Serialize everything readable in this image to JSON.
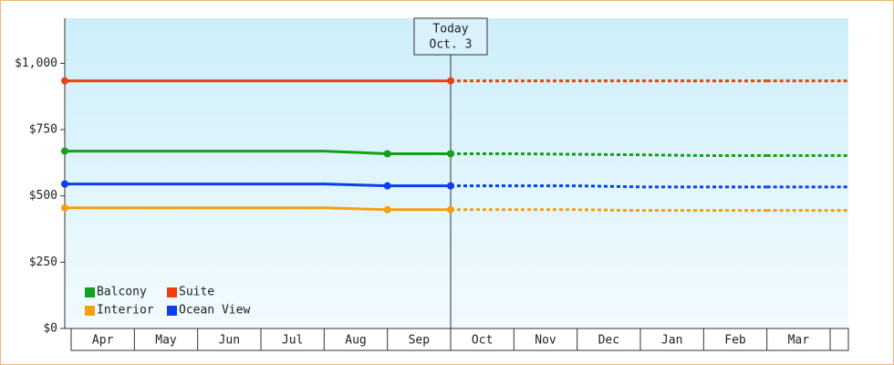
{
  "chart_data": {
    "type": "line",
    "categories": [
      "Apr",
      "May",
      "Jun",
      "Jul",
      "Aug",
      "Sep",
      "Oct",
      "Nov",
      "Dec",
      "Jan",
      "Feb",
      "Mar"
    ],
    "series": [
      {
        "name": "Balcony",
        "color": "#13a01a",
        "values": [
          669,
          669,
          669,
          669,
          669,
          659,
          659,
          659,
          657,
          655,
          652,
          652
        ]
      },
      {
        "name": "Suite",
        "color": "#f0400f",
        "values": [
          934,
          934,
          934,
          934,
          934,
          934,
          934,
          934,
          934,
          934,
          934,
          934
        ]
      },
      {
        "name": "Interior",
        "color": "#f5a00a",
        "values": [
          455,
          455,
          455,
          455,
          455,
          448,
          448,
          448,
          448,
          445,
          445,
          445
        ]
      },
      {
        "name": "Ocean View",
        "color": "#0a3ff0",
        "values": [
          545,
          545,
          545,
          545,
          545,
          538,
          538,
          538,
          538,
          534,
          534,
          534
        ]
      }
    ],
    "today_label": [
      "Today",
      "Oct. 3"
    ],
    "today_index": 6,
    "ylim": [
      0,
      1170
    ],
    "yticks": [
      0,
      {
        "value": 250,
        "label": "$250"
      },
      {
        "value": 500,
        "label": "$500"
      },
      {
        "value": 750,
        "label": "$750"
      },
      {
        "value": 1000,
        "label": "$1,000"
      }
    ],
    "yticks_zero_label": "$0"
  }
}
